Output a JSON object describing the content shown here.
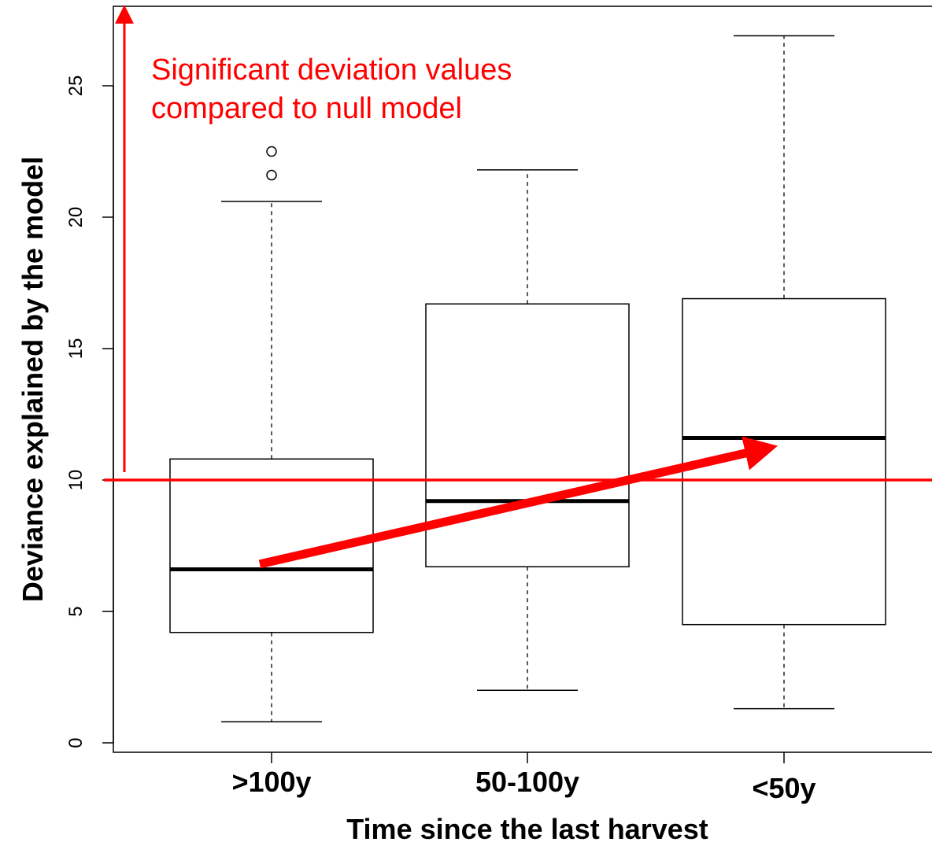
{
  "chart_data": {
    "type": "box",
    "title": "",
    "xlabel": "Time since the last harvest",
    "ylabel": "Deviance explained by the model",
    "categories": [
      ">100y",
      "50-100y",
      "<50y"
    ],
    "yticks": [
      0,
      5,
      10,
      15,
      20,
      25
    ],
    "ylim": [
      -0.4,
      28.1
    ],
    "grid": false,
    "boxes": [
      {
        "category": ">100y",
        "whisker_low": 0.8,
        "q1": 4.2,
        "median": 6.6,
        "q3": 10.8,
        "whisker_high": 20.6,
        "outliers": [
          21.6,
          22.5
        ]
      },
      {
        "category": "50-100y",
        "whisker_low": 2.0,
        "q1": 6.7,
        "median": 9.2,
        "q3": 16.7,
        "whisker_high": 21.8,
        "outliers": []
      },
      {
        "category": "<50y",
        "whisker_low": 1.3,
        "q1": 4.5,
        "median": 11.6,
        "q3": 16.9,
        "whisker_high": 26.9,
        "outliers": []
      }
    ],
    "reference_line": {
      "y": 10,
      "color": "#ff0000"
    },
    "annotations": [
      {
        "lines": [
          "Significant deviation values",
          "compared to null model"
        ],
        "color": "#ff0000"
      }
    ],
    "trend_arrow": {
      "from": {
        "category": ">100y",
        "y": 6.8
      },
      "to": {
        "category": "<50y",
        "y": 11.3
      },
      "color": "#ff0000"
    },
    "significance_arrow": {
      "from_y": 10.3,
      "to_y": 27.9,
      "color": "#ff0000"
    }
  }
}
